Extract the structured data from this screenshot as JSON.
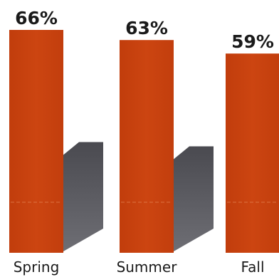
{
  "chart_data": {
    "type": "bar",
    "categories": [
      "Spring",
      "Summer",
      "Fall"
    ],
    "values": [
      66,
      63,
      59
    ],
    "value_labels": [
      "66%",
      "63%",
      "59%"
    ],
    "ylim": [
      0,
      70
    ],
    "grid": false,
    "legend": "none",
    "bar_color": "#c8400d",
    "shadow_color": "#55555a"
  }
}
